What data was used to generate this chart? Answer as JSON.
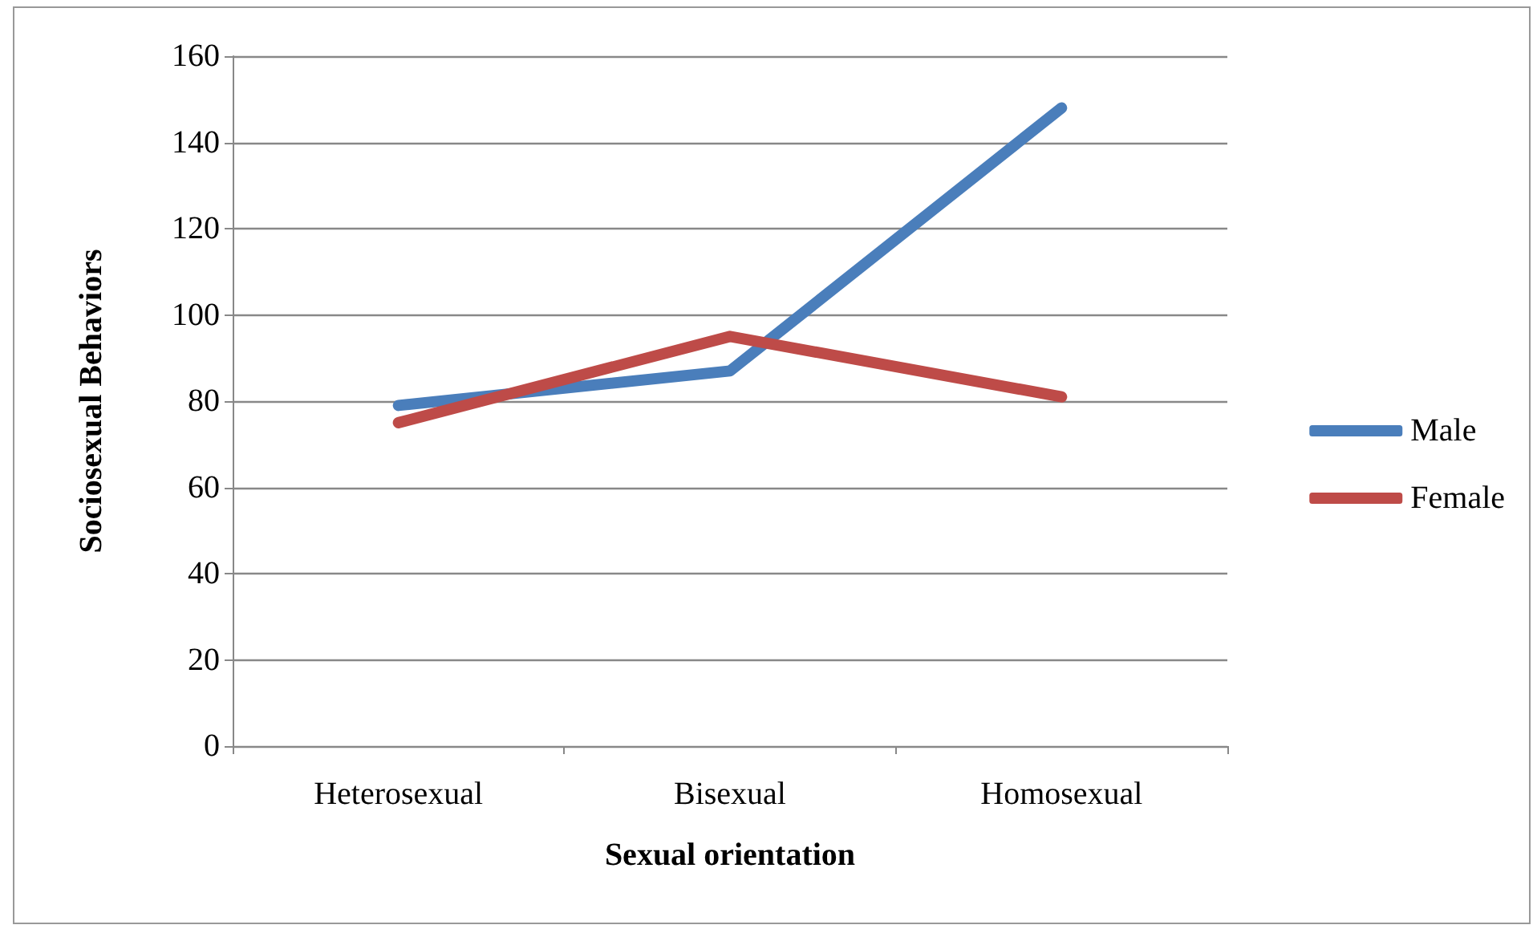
{
  "chart_data": {
    "type": "line",
    "xlabel": "Sexual orientation",
    "ylabel": "Sociosexual Behaviors",
    "categories": [
      "Heterosexual",
      "Bisexual",
      "Homosexual"
    ],
    "series": [
      {
        "name": "Male",
        "color": "#4a7ebb",
        "values": [
          79,
          87,
          148
        ]
      },
      {
        "name": "Female",
        "color": "#be4b48",
        "values": [
          75,
          95,
          81
        ]
      }
    ],
    "ylim": [
      0,
      160
    ],
    "yticks": [
      0,
      20,
      40,
      60,
      80,
      100,
      120,
      140,
      160
    ],
    "grid": "y",
    "legend": "right",
    "marker": "none",
    "line_style": "solid"
  }
}
